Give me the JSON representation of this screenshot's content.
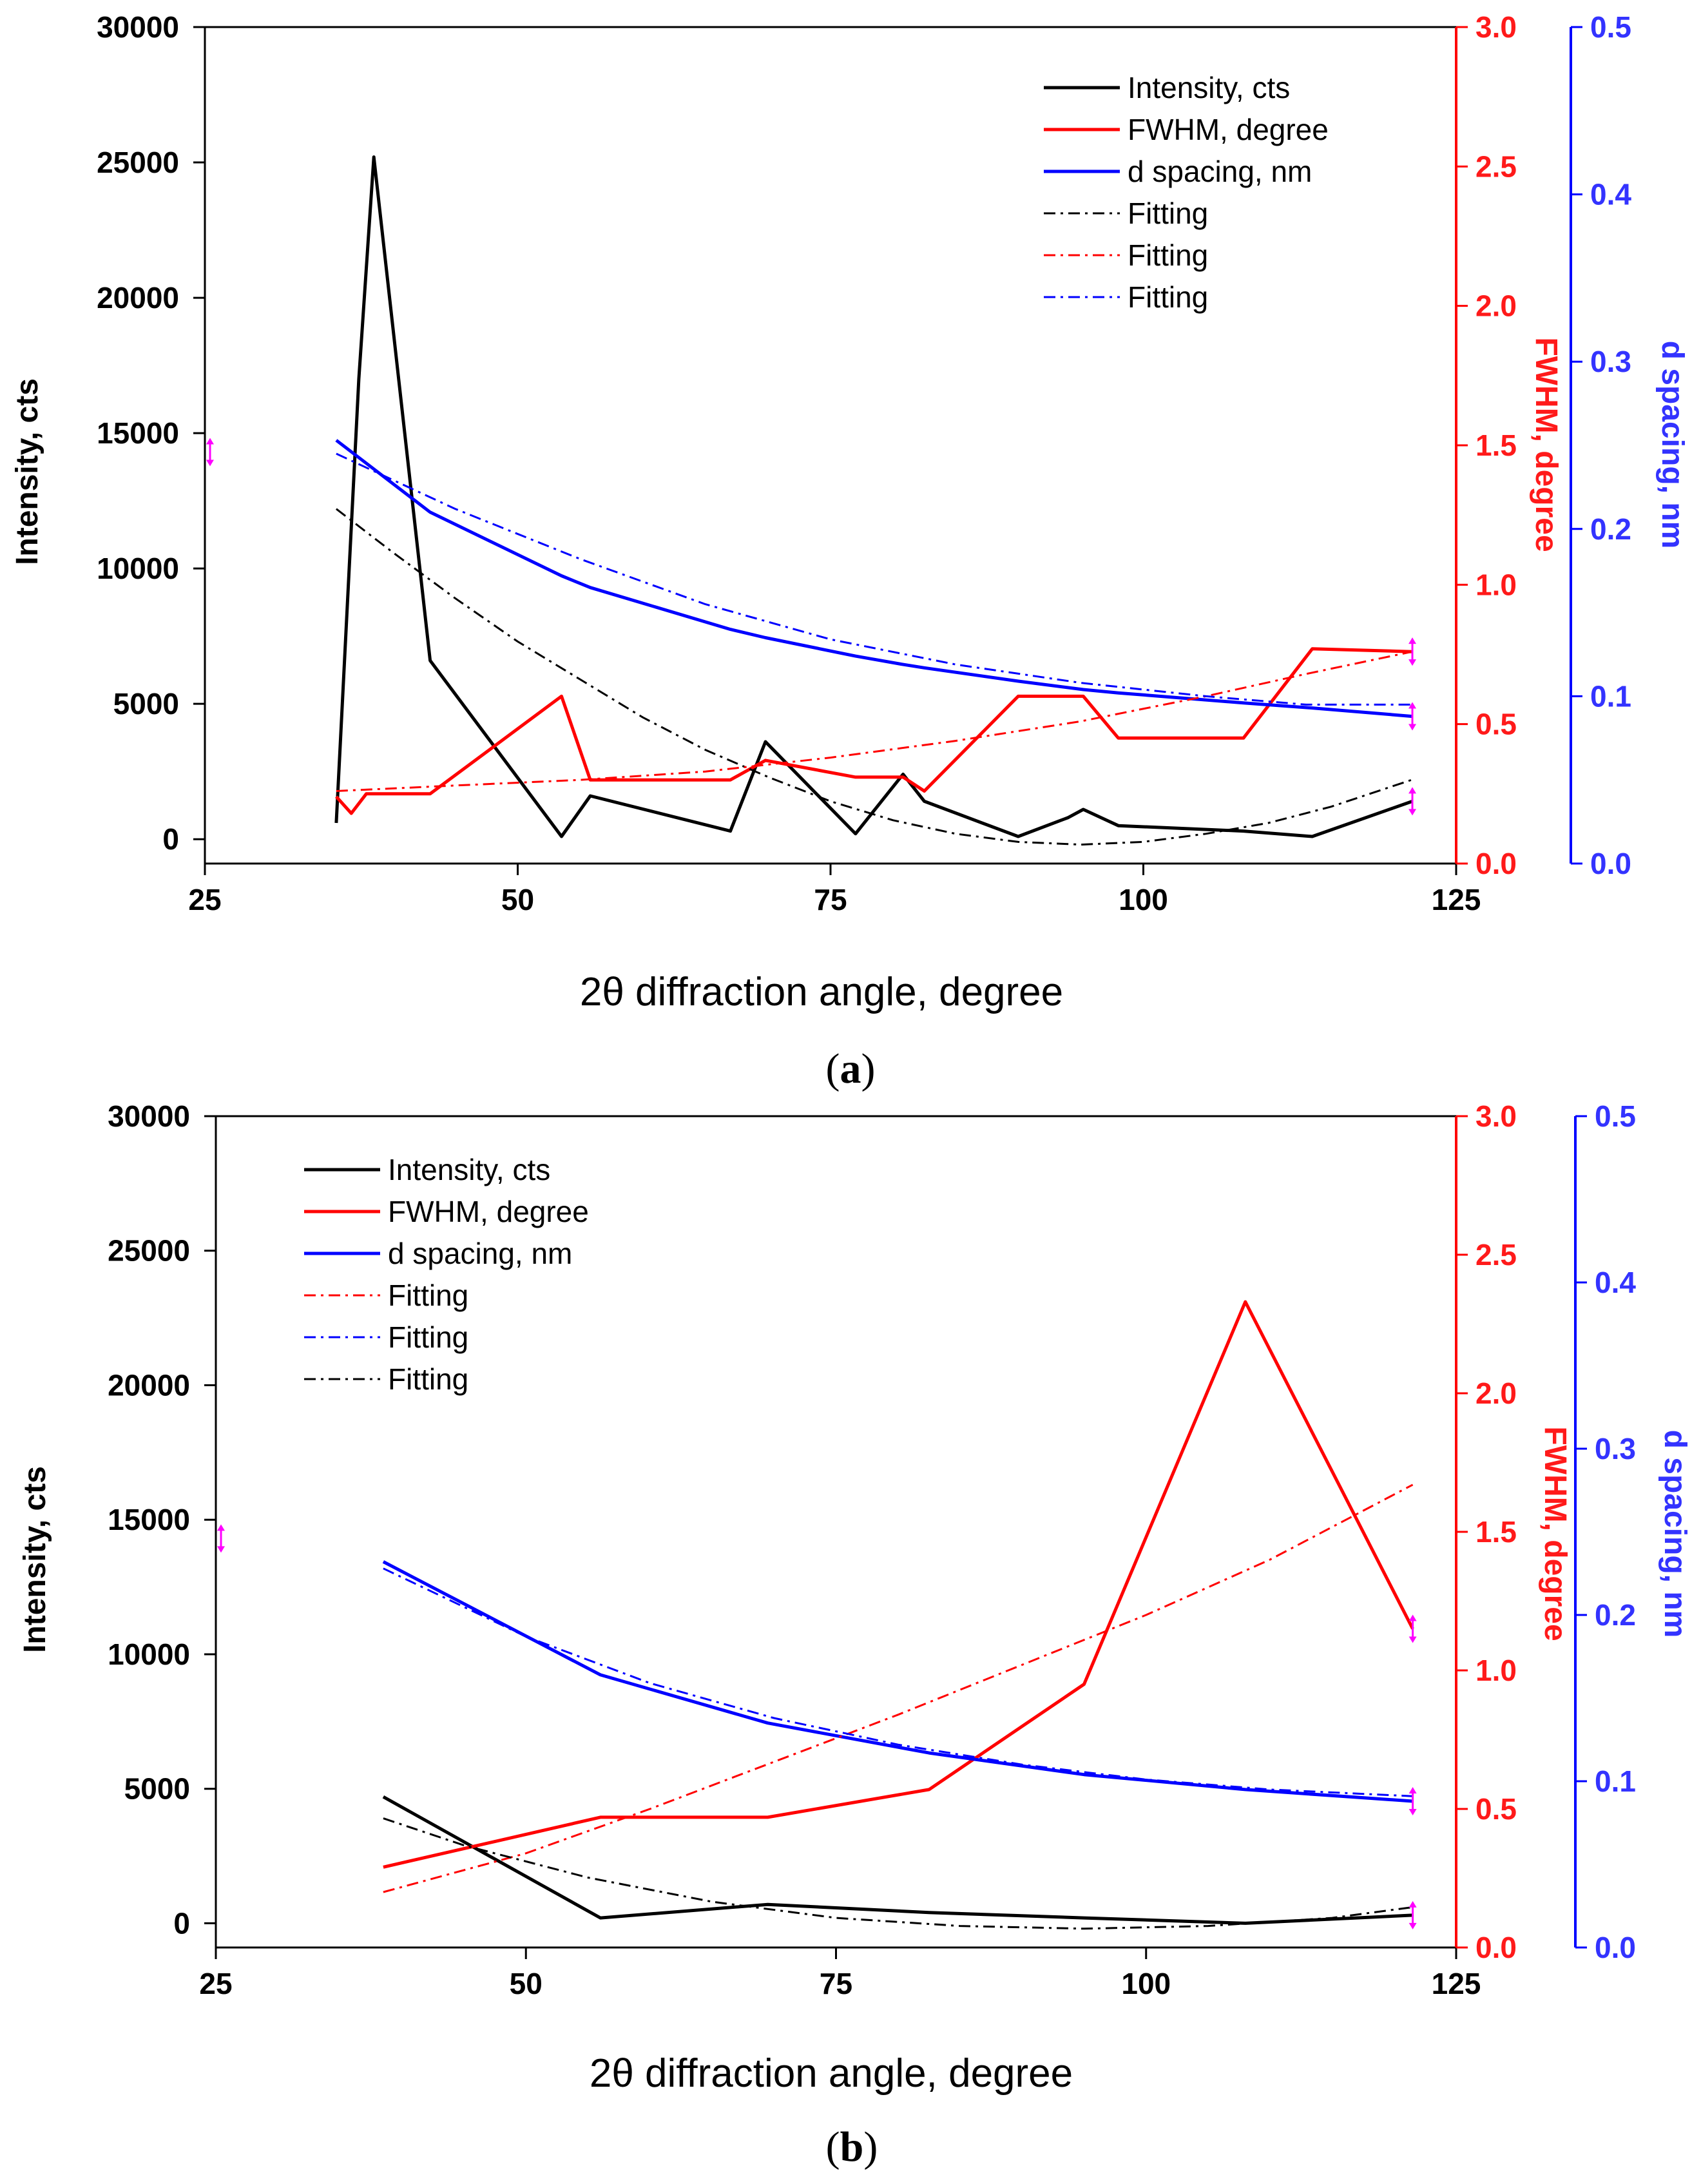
{
  "colors": {
    "intensity": "#000000",
    "fwhm": "#ff0000",
    "d_spacing": "#0000ff",
    "fwhm_axis_text": "#ff1a1a",
    "d_axis_text": "#3333ff",
    "marker": "#ff00ff"
  },
  "chart_data": [
    {
      "type": "line",
      "caption_letter": "a",
      "caption_open": "(",
      "caption_close": ")",
      "xlabel": "2θ diffraction angle, degree",
      "ylabel_left": "Intensity, cts",
      "ylabel_right1": "FWHM, degree",
      "ylabel_right2": "d spacing, nm",
      "xlim": [
        25,
        125
      ],
      "xticks": [
        25,
        50,
        75,
        100,
        125
      ],
      "ylim_left": [
        -900,
        30000
      ],
      "yticks_left": [
        0,
        5000,
        10000,
        15000,
        20000,
        25000,
        30000
      ],
      "ylim_right1": [
        0,
        3
      ],
      "yticks_right1": [
        "0.0",
        "0.5",
        "1.0",
        "1.5",
        "2.0",
        "2.5",
        "3.0"
      ],
      "ylim_right2": [
        0,
        0.5
      ],
      "yticks_right2": [
        "0.0",
        "0.1",
        "0.2",
        "0.3",
        "0.4",
        "0.5"
      ],
      "legend_position": "top-right",
      "legend": [
        {
          "label": "Intensity, cts",
          "series": "intensity",
          "style": "solid"
        },
        {
          "label": "FWHM, degree",
          "series": "fwhm",
          "style": "solid"
        },
        {
          "label": "d spacing, nm",
          "series": "d_spacing",
          "style": "solid"
        },
        {
          "label": "Fitting",
          "series": "intensity",
          "style": "dashdot"
        },
        {
          "label": "Fitting",
          "series": "fwhm",
          "style": "dashdot"
        },
        {
          "label": "Fitting",
          "series": "d_spacing",
          "style": "dashdot"
        }
      ],
      "series": [
        {
          "name": "Intensity, cts",
          "key": "intensity",
          "axis": "left",
          "style": "solid",
          "x": [
            35.5,
            37.3,
            38.5,
            43.0,
            53.5,
            55.8,
            67.0,
            69.8,
            77.0,
            80.8,
            82.5,
            90.0,
            94.0,
            95.2,
            98.0,
            108.0,
            113.5,
            121.5
          ],
          "y": [
            600,
            17000,
            25200,
            6600,
            100,
            1600,
            300,
            3600,
            200,
            2400,
            1400,
            100,
            800,
            1100,
            500,
            300,
            100,
            1400
          ]
        },
        {
          "name": "FWHM, degree",
          "key": "fwhm",
          "axis": "right1",
          "style": "solid",
          "x": [
            35.5,
            36.7,
            37.9,
            43.0,
            53.5,
            55.8,
            67.0,
            69.8,
            77.0,
            80.8,
            82.5,
            90.0,
            95.2,
            98.0,
            108.0,
            113.5,
            121.5
          ],
          "y": [
            0.24,
            0.18,
            0.25,
            0.25,
            0.6,
            0.3,
            0.3,
            0.37,
            0.31,
            0.31,
            0.26,
            0.6,
            0.6,
            0.45,
            0.45,
            0.77,
            0.76
          ]
        },
        {
          "name": "d spacing, nm",
          "key": "d_spacing",
          "axis": "right2",
          "style": "solid",
          "x": [
            35.5,
            43.0,
            53.5,
            55.8,
            67.0,
            69.8,
            77.0,
            80.8,
            82.5,
            90.0,
            95.2,
            98.0,
            108.0,
            113.5,
            121.5
          ],
          "y": [
            0.253,
            0.21,
            0.172,
            0.165,
            0.14,
            0.135,
            0.124,
            0.119,
            0.117,
            0.109,
            0.104,
            0.102,
            0.096,
            0.093,
            0.088
          ]
        },
        {
          "name": "Fitting",
          "key": "intensity",
          "axis": "left",
          "style": "dashdot",
          "x": [
            35.5,
            40,
            45,
            50,
            55,
            60,
            65,
            70,
            75,
            80,
            85,
            90,
            95,
            100,
            105,
            110,
            115,
            121.5
          ],
          "y": [
            12200,
            10600,
            8900,
            7300,
            5900,
            4500,
            3300,
            2300,
            1400,
            700,
            200,
            -100,
            -200,
            -100,
            200,
            600,
            1200,
            2200
          ]
        },
        {
          "name": "Fitting",
          "key": "fwhm",
          "axis": "right1",
          "style": "dashdot",
          "x": [
            35.5,
            45,
            55,
            65,
            75,
            85,
            95,
            105,
            113,
            121.5
          ],
          "y": [
            0.26,
            0.28,
            0.3,
            0.33,
            0.38,
            0.44,
            0.51,
            0.6,
            0.68,
            0.76
          ]
        },
        {
          "name": "Fitting",
          "key": "d_spacing",
          "axis": "right2",
          "style": "dashdot",
          "x": [
            35.5,
            45,
            55,
            65,
            75,
            85,
            95,
            105,
            113,
            121.5
          ],
          "y": [
            0.245,
            0.212,
            0.182,
            0.155,
            0.134,
            0.119,
            0.108,
            0.1,
            0.095,
            0.095
          ]
        }
      ]
    },
    {
      "type": "line",
      "caption_letter": "b",
      "caption_open": "(",
      "caption_close": ")",
      "xlabel": "2θ diffraction angle, degree",
      "ylabel_left": "Intensity, cts",
      "ylabel_right1": "FWHM, degree",
      "ylabel_right2": "d spacing, nm",
      "xlim": [
        25,
        125
      ],
      "xticks": [
        25,
        50,
        75,
        100,
        125
      ],
      "ylim_left": [
        -900,
        30000
      ],
      "yticks_left": [
        0,
        5000,
        10000,
        15000,
        20000,
        25000,
        30000
      ],
      "ylim_right1": [
        0,
        3
      ],
      "yticks_right1": [
        "0.0",
        "0.5",
        "1.0",
        "1.5",
        "2.0",
        "2.5",
        "3.0"
      ],
      "ylim_right2": [
        0,
        0.5
      ],
      "yticks_right2": [
        "0.0",
        "0.1",
        "0.2",
        "0.3",
        "0.4",
        "0.5"
      ],
      "legend_position": "top-left",
      "legend": [
        {
          "label": "Intensity, cts",
          "series": "intensity",
          "style": "solid"
        },
        {
          "label": "FWHM, degree",
          "series": "fwhm",
          "style": "solid"
        },
        {
          "label": "d spacing, nm",
          "series": "d_spacing",
          "style": "solid"
        },
        {
          "label": "Fitting",
          "series": "fwhm",
          "style": "dashdot"
        },
        {
          "label": "Fitting",
          "series": "d_spacing",
          "style": "dashdot"
        },
        {
          "label": "Fitting",
          "series": "intensity",
          "style": "dashdot"
        }
      ],
      "series": [
        {
          "name": "Intensity, cts",
          "key": "intensity",
          "axis": "left",
          "style": "solid",
          "x": [
            38.5,
            56.0,
            69.5,
            82.5,
            95.0,
            108.0,
            121.5
          ],
          "y": [
            4700,
            200,
            700,
            400,
            200,
            0,
            300
          ]
        },
        {
          "name": "FWHM, degree",
          "key": "fwhm",
          "axis": "right1",
          "style": "solid",
          "x": [
            38.5,
            56.0,
            69.5,
            82.5,
            95.0,
            108.0,
            121.5
          ],
          "y": [
            0.29,
            0.47,
            0.47,
            0.57,
            0.95,
            2.33,
            1.15
          ]
        },
        {
          "name": "d spacing, nm",
          "key": "d_spacing",
          "axis": "right2",
          "style": "solid",
          "x": [
            38.5,
            56.0,
            69.5,
            82.5,
            95.0,
            108.0,
            121.5
          ],
          "y": [
            0.232,
            0.164,
            0.135,
            0.117,
            0.104,
            0.095,
            0.088
          ]
        },
        {
          "name": "Fitting",
          "key": "fwhm",
          "axis": "right1",
          "style": "dashdot",
          "x": [
            38.5,
            50,
            60,
            70,
            80,
            90,
            100,
            110,
            121.5
          ],
          "y": [
            0.2,
            0.34,
            0.5,
            0.67,
            0.84,
            1.02,
            1.2,
            1.4,
            1.67
          ]
        },
        {
          "name": "Fitting",
          "key": "d_spacing",
          "axis": "right2",
          "style": "dashdot",
          "x": [
            38.5,
            50,
            60,
            70,
            80,
            90,
            100,
            110,
            121.5
          ],
          "y": [
            0.228,
            0.187,
            0.159,
            0.138,
            0.122,
            0.11,
            0.101,
            0.095,
            0.091
          ]
        },
        {
          "name": "Fitting",
          "key": "intensity",
          "axis": "left",
          "style": "dashdot",
          "x": [
            38.5,
            45,
            55,
            65,
            75,
            85,
            95,
            105,
            115,
            121.5
          ],
          "y": [
            3900,
            2900,
            1700,
            800,
            200,
            -100,
            -200,
            -100,
            200,
            600
          ]
        }
      ]
    }
  ]
}
